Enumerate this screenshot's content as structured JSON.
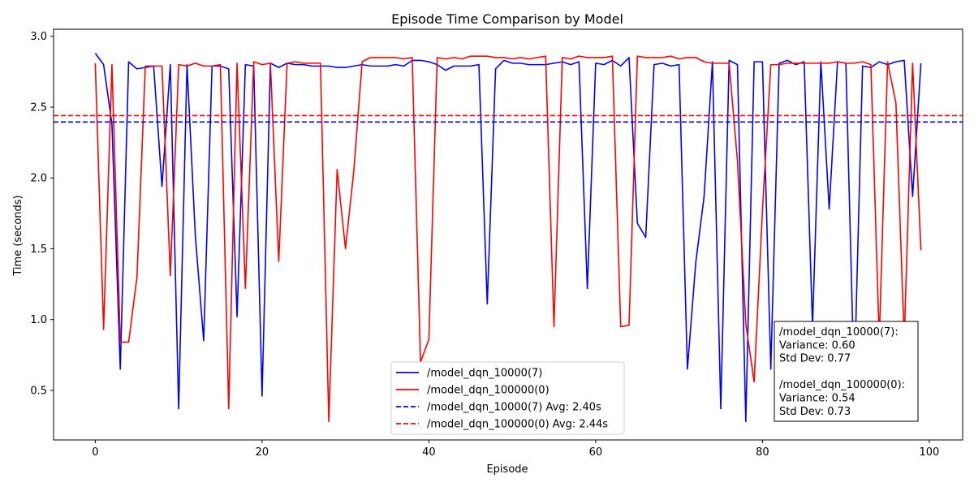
{
  "chart_data": {
    "type": "line",
    "title": "Episode Time Comparison by Model",
    "xlabel": "Episode",
    "ylabel": "Time (seconds)",
    "xlim": [
      -5,
      104
    ],
    "ylim": [
      0.15,
      3.05
    ],
    "xticks": [
      0,
      20,
      40,
      60,
      80,
      100
    ],
    "yticks": [
      0.5,
      1.0,
      1.5,
      2.0,
      2.5,
      3.0
    ],
    "ytick_labels": [
      "0.5",
      "1.0",
      "1.5",
      "2.0",
      "2.5",
      "3.0"
    ],
    "grid": false,
    "legend_position": "bottom-center",
    "series": [
      {
        "name": "/model_dqn_10000(7)",
        "color": "#0000ff",
        "style": "solid",
        "x": [
          0,
          1,
          2,
          3,
          4,
          5,
          6,
          7,
          8,
          9,
          10,
          11,
          12,
          13,
          14,
          15,
          16,
          17,
          18,
          19,
          20,
          21,
          22,
          23,
          24,
          25,
          26,
          27,
          28,
          29,
          30,
          31,
          32,
          33,
          34,
          35,
          36,
          37,
          38,
          39,
          40,
          41,
          42,
          43,
          44,
          45,
          46,
          47,
          48,
          49,
          50,
          51,
          52,
          53,
          54,
          55,
          56,
          57,
          58,
          59,
          60,
          61,
          62,
          63,
          64,
          65,
          66,
          67,
          68,
          69,
          70,
          71,
          72,
          73,
          74,
          75,
          76,
          77,
          78,
          79,
          80,
          81,
          82,
          83,
          84,
          85,
          86,
          87,
          88,
          89,
          90,
          91,
          92,
          93,
          94,
          95,
          96,
          97,
          98,
          99
        ],
        "y": [
          2.88,
          2.8,
          2.38,
          0.65,
          2.82,
          2.77,
          2.78,
          2.79,
          1.94,
          2.8,
          0.37,
          2.8,
          1.59,
          0.85,
          2.79,
          2.79,
          2.77,
          1.02,
          2.8,
          2.79,
          0.46,
          2.81,
          2.78,
          2.81,
          2.8,
          2.8,
          2.79,
          2.79,
          2.79,
          2.78,
          2.78,
          2.79,
          2.8,
          2.79,
          2.79,
          2.79,
          2.8,
          2.79,
          2.83,
          2.83,
          2.82,
          2.8,
          2.76,
          2.79,
          2.79,
          2.79,
          2.8,
          1.11,
          2.77,
          2.83,
          2.81,
          2.81,
          2.8,
          2.8,
          2.8,
          2.81,
          2.82,
          2.8,
          2.82,
          1.22,
          2.81,
          2.8,
          2.83,
          2.79,
          2.85,
          1.68,
          1.58,
          2.8,
          2.81,
          2.79,
          2.8,
          0.65,
          1.4,
          1.87,
          2.82,
          0.37,
          2.83,
          2.8,
          0.28,
          2.82,
          2.82,
          0.65,
          2.81,
          2.83,
          2.8,
          2.82,
          0.95,
          2.82,
          1.78,
          2.82,
          2.81,
          0.53,
          2.79,
          2.78,
          2.82,
          2.8,
          2.82,
          2.83,
          1.87,
          2.81
        ]
      },
      {
        "name": "/model_dqn_100000(0)",
        "color": "#ff0000",
        "style": "solid",
        "x": [
          0,
          1,
          2,
          3,
          4,
          5,
          6,
          7,
          8,
          9,
          10,
          11,
          12,
          13,
          14,
          15,
          16,
          17,
          18,
          19,
          20,
          21,
          22,
          23,
          24,
          25,
          26,
          27,
          28,
          29,
          30,
          31,
          32,
          33,
          34,
          35,
          36,
          37,
          38,
          39,
          40,
          41,
          42,
          43,
          44,
          45,
          46,
          47,
          48,
          49,
          50,
          51,
          52,
          53,
          54,
          55,
          56,
          57,
          58,
          59,
          60,
          61,
          62,
          63,
          64,
          65,
          66,
          67,
          68,
          69,
          70,
          71,
          72,
          73,
          74,
          75,
          76,
          77,
          78,
          79,
          80,
          81,
          82,
          83,
          84,
          85,
          86,
          87,
          88,
          89,
          90,
          91,
          92,
          93,
          94,
          95,
          96,
          97,
          98,
          99
        ],
        "y": [
          2.81,
          0.93,
          2.8,
          0.84,
          0.84,
          1.3,
          2.79,
          2.79,
          2.79,
          1.31,
          2.8,
          2.79,
          2.81,
          2.79,
          2.79,
          2.8,
          0.37,
          2.81,
          1.22,
          2.82,
          2.8,
          2.81,
          1.41,
          2.81,
          2.82,
          2.81,
          2.81,
          2.81,
          0.28,
          2.06,
          1.5,
          2.05,
          2.82,
          2.85,
          2.85,
          2.85,
          2.85,
          2.84,
          2.85,
          0.7,
          0.86,
          2.85,
          2.84,
          2.85,
          2.84,
          2.86,
          2.86,
          2.86,
          2.85,
          2.85,
          2.84,
          2.85,
          2.84,
          2.85,
          2.86,
          0.95,
          2.85,
          2.84,
          2.86,
          2.85,
          2.85,
          2.85,
          2.86,
          0.95,
          0.96,
          2.86,
          2.85,
          2.85,
          2.85,
          2.86,
          2.84,
          2.85,
          2.85,
          2.82,
          2.81,
          2.81,
          2.81,
          2.12,
          0.97,
          0.56,
          1.77,
          2.8,
          2.8,
          2.81,
          2.81,
          2.81,
          2.81,
          2.81,
          2.81,
          2.82,
          2.81,
          2.81,
          2.82,
          2.8,
          0.85,
          2.82,
          2.53,
          0.85,
          2.81,
          1.49
        ]
      }
    ],
    "averages": [
      {
        "name": "/model_dqn_10000(7) Avg: 2.40s",
        "value": 2.395,
        "color": "#0000ff"
      },
      {
        "name": "/model_dqn_100000(0) Avg: 2.44s",
        "value": 2.44,
        "color": "#ff0000"
      }
    ],
    "stats_box": [
      "/model_dqn_10000(7):",
      "Variance: 0.60",
      "Std Dev: 0.77",
      "",
      "/model_dqn_100000(0):",
      "Variance: 0.54",
      "Std Dev: 0.73"
    ]
  }
}
